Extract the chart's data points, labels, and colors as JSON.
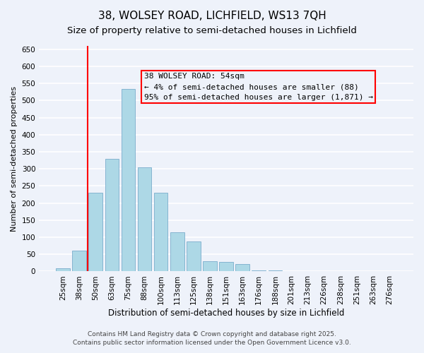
{
  "title": "38, WOLSEY ROAD, LICHFIELD, WS13 7QH",
  "subtitle": "Size of property relative to semi-detached houses in Lichfield",
  "xlabel": "Distribution of semi-detached houses by size in Lichfield",
  "ylabel": "Number of semi-detached properties",
  "bar_labels": [
    "25sqm",
    "38sqm",
    "50sqm",
    "63sqm",
    "75sqm",
    "88sqm",
    "100sqm",
    "113sqm",
    "125sqm",
    "138sqm",
    "151sqm",
    "163sqm",
    "176sqm",
    "188sqm",
    "201sqm",
    "213sqm",
    "226sqm",
    "238sqm",
    "251sqm",
    "263sqm",
    "276sqm"
  ],
  "bar_values": [
    10,
    60,
    230,
    330,
    535,
    305,
    230,
    115,
    88,
    30,
    27,
    22,
    3,
    2,
    1,
    1,
    0,
    0,
    0,
    0,
    0
  ],
  "bar_color": "#add8e6",
  "bar_edge_color": "#7aadcc",
  "vline_x": 1.5,
  "vline_color": "red",
  "annotation_title": "38 WOLSEY ROAD: 54sqm",
  "annotation_line1": "← 4% of semi-detached houses are smaller (88)",
  "annotation_line2": "95% of semi-detached houses are larger (1,871) →",
  "ylim": [
    0,
    660
  ],
  "yticks": [
    0,
    50,
    100,
    150,
    200,
    250,
    300,
    350,
    400,
    450,
    500,
    550,
    600,
    650
  ],
  "footer1": "Contains HM Land Registry data © Crown copyright and database right 2025.",
  "footer2": "Contains public sector information licensed under the Open Government Licence v3.0.",
  "background_color": "#eef2fa",
  "grid_color": "#ffffff",
  "title_fontsize": 11,
  "subtitle_fontsize": 9.5,
  "xlabel_fontsize": 8.5,
  "ylabel_fontsize": 8,
  "tick_fontsize": 7.5,
  "annotation_fontsize": 8,
  "footer_fontsize": 6.5
}
